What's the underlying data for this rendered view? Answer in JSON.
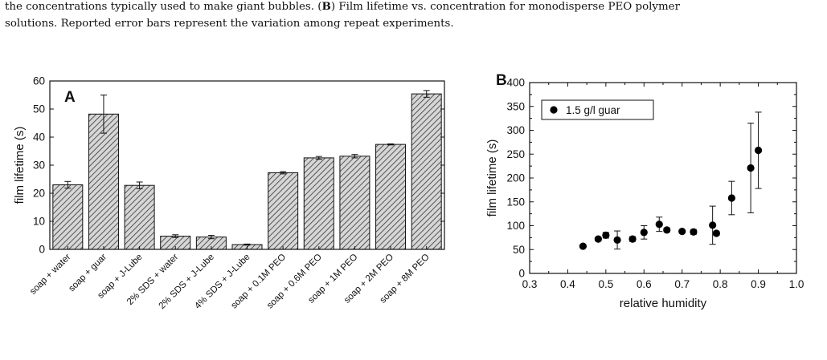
{
  "caption": {
    "line1_pre": "the concentrations typically used to make giant bubbles. (",
    "line1_b": "B",
    "line1_post": ") Film lifetime vs. concentration for monodisperse PEO polymer",
    "line2": "solutions. Reported error bars represent the variation among repeat experiments."
  },
  "chart_data": [
    {
      "type": "bar",
      "panel_label": "A",
      "title": "",
      "xlabel": "",
      "ylabel": "film lifetime (s)",
      "ylim": [
        0,
        60
      ],
      "yticks": [
        0,
        10,
        20,
        30,
        40,
        50,
        60
      ],
      "categories": [
        "soap + water",
        "soap + guar",
        "soap + J-Lube",
        "2% SDS + water",
        "2% SDS + J-Lube",
        "4% SDS + J-Lube",
        "soap + 0.1M PEO",
        "soap + 0.6M PEO",
        "soap + 1M PEO",
        "soap + 2M PEO",
        "soap + 8M PEO"
      ],
      "values": [
        23,
        48.2,
        22.8,
        4.7,
        4.4,
        1.7,
        27.3,
        32.6,
        33.2,
        37.4,
        55.4
      ],
      "errors": [
        1.2,
        6.8,
        1.2,
        0.5,
        0.6,
        0.2,
        0.4,
        0.5,
        0.6,
        0.2,
        1.2
      ],
      "bar_fill": "hatched gray",
      "grid": false
    },
    {
      "type": "scatter",
      "panel_label": "B",
      "title": "",
      "xlabel": "relative humidity",
      "ylabel": "film lifetime (s)",
      "xlim": [
        0.3,
        1.0
      ],
      "ylim": [
        0,
        400
      ],
      "xticks": [
        "0.3",
        "0.4",
        "0.5",
        "0.6",
        "0.7",
        "0.8",
        "0.9",
        "1.0"
      ],
      "yticks": [
        0,
        50,
        100,
        150,
        200,
        250,
        300,
        350,
        400
      ],
      "legend": "top-left",
      "grid": false,
      "series": [
        {
          "name": "1.5 g/l guar",
          "x": [
            0.44,
            0.48,
            0.5,
            0.53,
            0.57,
            0.6,
            0.64,
            0.66,
            0.7,
            0.73,
            0.78,
            0.79,
            0.83,
            0.88,
            0.9
          ],
          "y": [
            57,
            72,
            80,
            70,
            72,
            86,
            103,
            91,
            88,
            87,
            101,
            84,
            158,
            221,
            258
          ],
          "err": [
            2,
            4,
            6,
            19,
            5,
            14,
            15,
            4,
            3,
            5,
            40,
            4,
            35,
            94,
            80
          ]
        }
      ]
    }
  ]
}
